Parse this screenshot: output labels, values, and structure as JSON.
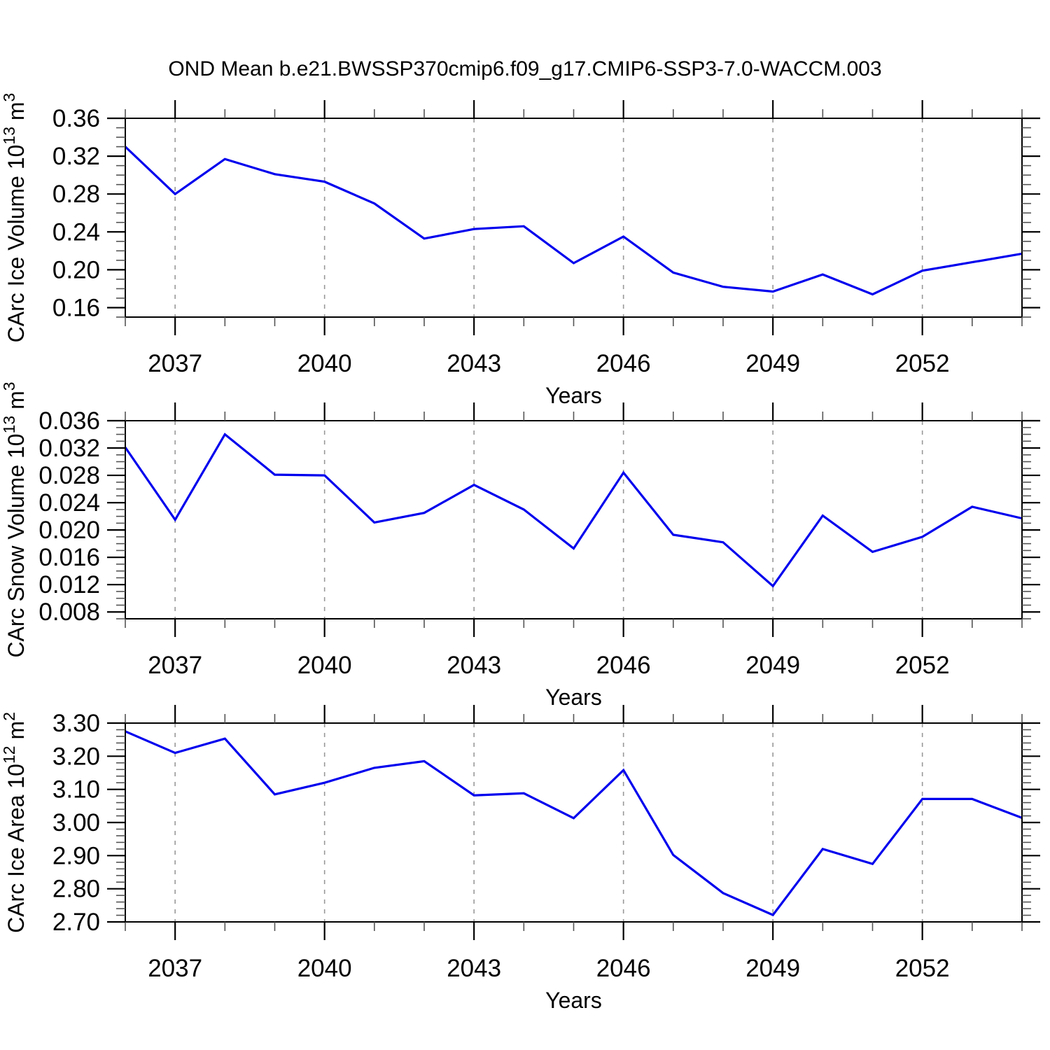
{
  "title": "OND Mean b.e21.BWSSP370cmip6.f09_g17.CMIP6-SSP3-7.0-WACCM.003",
  "colors": {
    "line": "#0000ee",
    "grid": "#999999",
    "axis": "#000000",
    "minor_tick": "#555555",
    "background": "#ffffff"
  },
  "chart_data": [
    {
      "type": "line",
      "title": "",
      "ylabel": "CArc Ice Volume 10^13 m^3",
      "ylabel_parts": [
        {
          "text": "CArc Ice Volume 10"
        },
        {
          "text": "13",
          "sup": true
        },
        {
          "text": " m"
        },
        {
          "text": "3",
          "sup": true
        }
      ],
      "xlabel": "Years",
      "x": [
        2036,
        2037,
        2038,
        2039,
        2040,
        2041,
        2042,
        2043,
        2044,
        2045,
        2046,
        2047,
        2048,
        2049,
        2050,
        2051,
        2052,
        2053,
        2054
      ],
      "values": [
        0.33,
        0.28,
        0.317,
        0.301,
        0.293,
        0.27,
        0.233,
        0.243,
        0.246,
        0.207,
        0.235,
        0.197,
        0.182,
        0.177,
        0.195,
        0.174,
        0.199,
        0.208,
        0.217
      ],
      "xlim": [
        2036,
        2054
      ],
      "ylim": [
        0.15,
        0.36
      ],
      "xticks_major": [
        2037,
        2040,
        2043,
        2046,
        2049,
        2052
      ],
      "xtick_labels": [
        "2037",
        "2040",
        "2043",
        "2046",
        "2049",
        "2052"
      ],
      "x_minor_step": 1,
      "ytick_values": [
        0.16,
        0.2,
        0.24,
        0.28,
        0.32,
        0.36
      ],
      "ytick_labels": [
        "0.16",
        "0.20",
        "0.24",
        "0.28",
        "0.32",
        "0.36"
      ],
      "y_minor_step": 0.01,
      "grid_x": [
        2037,
        2040,
        2043,
        2046,
        2049,
        2052
      ],
      "grid_on": true,
      "legend": "none"
    },
    {
      "type": "line",
      "title": "",
      "ylabel": "CArc Snow Volume 10^13 m^3",
      "ylabel_parts": [
        {
          "text": "CArc Snow Volume 10"
        },
        {
          "text": "13",
          "sup": true
        },
        {
          "text": " m"
        },
        {
          "text": "3",
          "sup": true
        }
      ],
      "xlabel": "Years",
      "x": [
        2036,
        2037,
        2038,
        2039,
        2040,
        2041,
        2042,
        2043,
        2044,
        2045,
        2046,
        2047,
        2048,
        2049,
        2050,
        2051,
        2052,
        2053,
        2054
      ],
      "values": [
        0.0321,
        0.0215,
        0.034,
        0.0281,
        0.028,
        0.0211,
        0.0225,
        0.0266,
        0.023,
        0.0173,
        0.0284,
        0.0193,
        0.0182,
        0.0118,
        0.0221,
        0.0168,
        0.019,
        0.0234,
        0.0217
      ],
      "xlim": [
        2036,
        2054
      ],
      "ylim": [
        0.007,
        0.036
      ],
      "xticks_major": [
        2037,
        2040,
        2043,
        2046,
        2049,
        2052
      ],
      "xtick_labels": [
        "2037",
        "2040",
        "2043",
        "2046",
        "2049",
        "2052"
      ],
      "x_minor_step": 1,
      "ytick_values": [
        0.008,
        0.012,
        0.016,
        0.02,
        0.024,
        0.028,
        0.032,
        0.036
      ],
      "ytick_labels": [
        "0.008",
        "0.012",
        "0.016",
        "0.020",
        "0.024",
        "0.028",
        "0.032",
        "0.036"
      ],
      "y_minor_step": 0.001,
      "grid_x": [
        2037,
        2040,
        2043,
        2046,
        2049,
        2052
      ],
      "grid_on": true,
      "legend": "none"
    },
    {
      "type": "line",
      "title": "",
      "ylabel": "CArc Ice Area 10^12 m^2",
      "ylabel_parts": [
        {
          "text": "CArc Ice Area 10"
        },
        {
          "text": "12",
          "sup": true
        },
        {
          "text": " m"
        },
        {
          "text": "2",
          "sup": true
        }
      ],
      "xlabel": "Years",
      "x": [
        2036,
        2037,
        2038,
        2039,
        2040,
        2041,
        2042,
        2043,
        2044,
        2045,
        2046,
        2047,
        2048,
        2049,
        2050,
        2051,
        2052,
        2053,
        2054
      ],
      "values": [
        3.275,
        3.21,
        3.253,
        3.085,
        3.12,
        3.165,
        3.185,
        3.082,
        3.088,
        3.013,
        3.158,
        2.902,
        2.787,
        2.721,
        2.92,
        2.875,
        3.071,
        3.071,
        3.014
      ],
      "xlim": [
        2036,
        2054
      ],
      "ylim": [
        2.7,
        3.3
      ],
      "xticks_major": [
        2037,
        2040,
        2043,
        2046,
        2049,
        2052
      ],
      "xtick_labels": [
        "2037",
        "2040",
        "2043",
        "2046",
        "2049",
        "2052"
      ],
      "x_minor_step": 1,
      "ytick_values": [
        2.7,
        2.8,
        2.9,
        3.0,
        3.1,
        3.2,
        3.3
      ],
      "ytick_labels": [
        "2.70",
        "2.80",
        "2.90",
        "3.00",
        "3.10",
        "3.20",
        "3.30"
      ],
      "y_minor_step": 0.02,
      "grid_x": [
        2037,
        2040,
        2043,
        2046,
        2049,
        2052
      ],
      "grid_on": true,
      "legend": "none"
    }
  ]
}
